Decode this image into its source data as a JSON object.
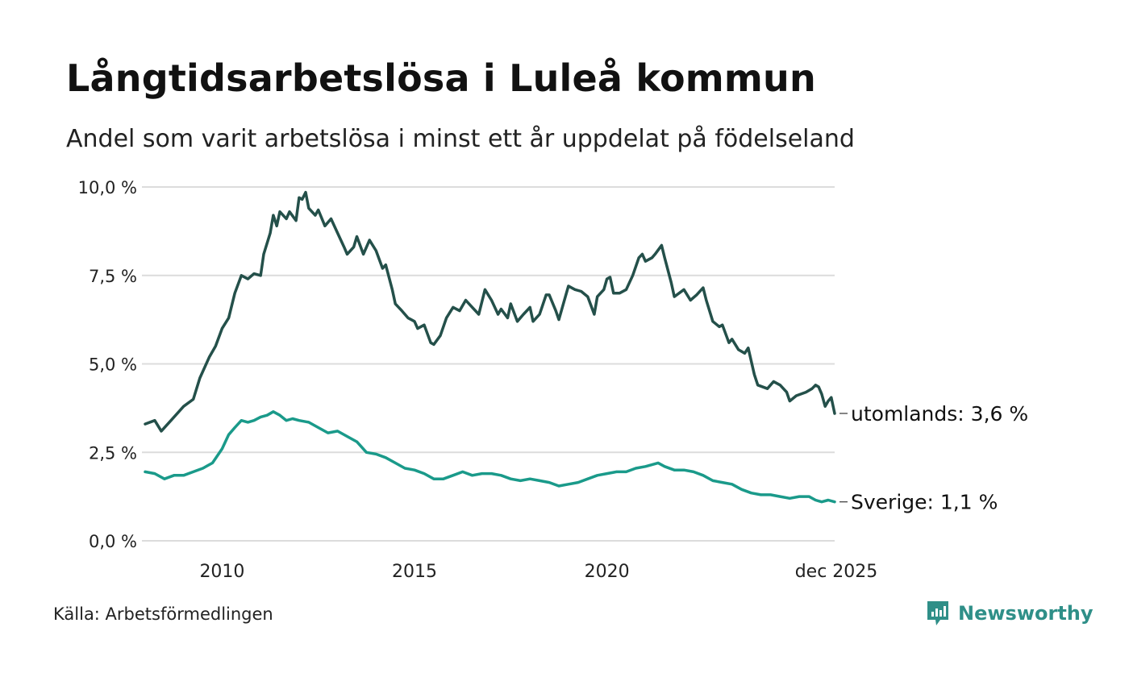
{
  "header": {
    "title": "Långtidsarbetslösa i Luleå kommun",
    "subtitle": "Andel som varit arbetslösa i minst ett år uppdelat på födelseland"
  },
  "footer": {
    "source": "Källa: Arbetsförmedlingen",
    "brand": "Newsworthy"
  },
  "colors": {
    "utomlands": "#24504a",
    "sverige": "#1a9a8a",
    "grid": "#dcdcdc",
    "brand": "#2f8f88"
  },
  "chart_data": {
    "type": "line",
    "title": "Långtidsarbetslösa i Luleå kommun",
    "subtitle": "Andel som varit arbetslösa i minst ett år uppdelat på födelseland",
    "xlabel": "",
    "ylabel": "",
    "ylim": [
      0,
      10
    ],
    "xlim": [
      2008.0,
      2025.917
    ],
    "grid": "horizontal",
    "yticks": [
      {
        "value": 0,
        "label": "0,0 %"
      },
      {
        "value": 2.5,
        "label": "2,5 %"
      },
      {
        "value": 5,
        "label": "5,0 %"
      },
      {
        "value": 7.5,
        "label": "7,5 %"
      },
      {
        "value": 10,
        "label": "10,0 %"
      }
    ],
    "xticks": [
      {
        "value": 2010,
        "label": "2010"
      },
      {
        "value": 2015,
        "label": "2015"
      },
      {
        "value": 2020,
        "label": "2020"
      },
      {
        "value": 2025.917,
        "label": "dec 2025"
      }
    ],
    "series": [
      {
        "name": "utomlands",
        "end_label": "utomlands: 3,6 %",
        "points": [
          [
            2008.0,
            3.3
          ],
          [
            2008.25,
            3.4
          ],
          [
            2008.42,
            3.1
          ],
          [
            2008.67,
            3.4
          ],
          [
            2009.0,
            3.8
          ],
          [
            2009.25,
            4.0
          ],
          [
            2009.42,
            4.6
          ],
          [
            2009.67,
            5.2
          ],
          [
            2009.83,
            5.5
          ],
          [
            2010.0,
            6.0
          ],
          [
            2010.17,
            6.3
          ],
          [
            2010.33,
            7.0
          ],
          [
            2010.5,
            7.5
          ],
          [
            2010.67,
            7.4
          ],
          [
            2010.83,
            7.55
          ],
          [
            2011.0,
            7.5
          ],
          [
            2011.08,
            8.1
          ],
          [
            2011.25,
            8.7
          ],
          [
            2011.33,
            9.2
          ],
          [
            2011.42,
            8.9
          ],
          [
            2011.5,
            9.3
          ],
          [
            2011.67,
            9.1
          ],
          [
            2011.75,
            9.3
          ],
          [
            2011.92,
            9.05
          ],
          [
            2012.0,
            9.7
          ],
          [
            2012.08,
            9.65
          ],
          [
            2012.17,
            9.85
          ],
          [
            2012.25,
            9.4
          ],
          [
            2012.42,
            9.2
          ],
          [
            2012.5,
            9.35
          ],
          [
            2012.67,
            8.9
          ],
          [
            2012.83,
            9.1
          ],
          [
            2013.0,
            8.7
          ],
          [
            2013.17,
            8.3
          ],
          [
            2013.25,
            8.1
          ],
          [
            2013.42,
            8.3
          ],
          [
            2013.5,
            8.6
          ],
          [
            2013.67,
            8.1
          ],
          [
            2013.83,
            8.5
          ],
          [
            2014.0,
            8.2
          ],
          [
            2014.17,
            7.7
          ],
          [
            2014.25,
            7.8
          ],
          [
            2014.42,
            7.1
          ],
          [
            2014.5,
            6.7
          ],
          [
            2014.67,
            6.5
          ],
          [
            2014.83,
            6.3
          ],
          [
            2015.0,
            6.2
          ],
          [
            2015.08,
            6.0
          ],
          [
            2015.25,
            6.1
          ],
          [
            2015.42,
            5.6
          ],
          [
            2015.5,
            5.55
          ],
          [
            2015.67,
            5.8
          ],
          [
            2015.83,
            6.3
          ],
          [
            2016.0,
            6.6
          ],
          [
            2016.17,
            6.5
          ],
          [
            2016.33,
            6.8
          ],
          [
            2016.5,
            6.6
          ],
          [
            2016.67,
            6.4
          ],
          [
            2016.83,
            7.1
          ],
          [
            2017.0,
            6.8
          ],
          [
            2017.17,
            6.4
          ],
          [
            2017.25,
            6.55
          ],
          [
            2017.42,
            6.3
          ],
          [
            2017.5,
            6.7
          ],
          [
            2017.67,
            6.2
          ],
          [
            2017.83,
            6.4
          ],
          [
            2018.0,
            6.6
          ],
          [
            2018.08,
            6.2
          ],
          [
            2018.25,
            6.4
          ],
          [
            2018.42,
            6.95
          ],
          [
            2018.5,
            6.95
          ],
          [
            2018.67,
            6.5
          ],
          [
            2018.75,
            6.25
          ],
          [
            2018.92,
            6.9
          ],
          [
            2019.0,
            7.2
          ],
          [
            2019.17,
            7.1
          ],
          [
            2019.33,
            7.05
          ],
          [
            2019.5,
            6.9
          ],
          [
            2019.67,
            6.4
          ],
          [
            2019.75,
            6.9
          ],
          [
            2019.92,
            7.1
          ],
          [
            2020.0,
            7.4
          ],
          [
            2020.08,
            7.45
          ],
          [
            2020.17,
            7.0
          ],
          [
            2020.33,
            7.0
          ],
          [
            2020.5,
            7.1
          ],
          [
            2020.67,
            7.5
          ],
          [
            2020.83,
            8.0
          ],
          [
            2020.92,
            8.1
          ],
          [
            2021.0,
            7.9
          ],
          [
            2021.17,
            8.0
          ],
          [
            2021.25,
            8.1
          ],
          [
            2021.42,
            8.35
          ],
          [
            2021.5,
            8.0
          ],
          [
            2021.67,
            7.3
          ],
          [
            2021.75,
            6.9
          ],
          [
            2022.0,
            7.1
          ],
          [
            2022.17,
            6.8
          ],
          [
            2022.33,
            6.95
          ],
          [
            2022.5,
            7.15
          ],
          [
            2022.58,
            6.8
          ],
          [
            2022.75,
            6.2
          ],
          [
            2022.92,
            6.05
          ],
          [
            2023.0,
            6.1
          ],
          [
            2023.17,
            5.6
          ],
          [
            2023.25,
            5.7
          ],
          [
            2023.42,
            5.4
          ],
          [
            2023.58,
            5.3
          ],
          [
            2023.67,
            5.45
          ],
          [
            2023.83,
            4.7
          ],
          [
            2023.92,
            4.4
          ],
          [
            2024.17,
            4.3
          ],
          [
            2024.33,
            4.5
          ],
          [
            2024.5,
            4.4
          ],
          [
            2024.67,
            4.2
          ],
          [
            2024.75,
            3.95
          ],
          [
            2024.92,
            4.1
          ],
          [
            2025.17,
            4.2
          ],
          [
            2025.33,
            4.3
          ],
          [
            2025.42,
            4.4
          ],
          [
            2025.5,
            4.35
          ],
          [
            2025.58,
            4.15
          ],
          [
            2025.67,
            3.8
          ],
          [
            2025.75,
            3.95
          ],
          [
            2025.83,
            4.05
          ],
          [
            2025.917,
            3.6
          ]
        ]
      },
      {
        "name": "Sverige",
        "end_label": "Sverige: 1,1 %",
        "points": [
          [
            2008.0,
            1.95
          ],
          [
            2008.25,
            1.9
          ],
          [
            2008.5,
            1.75
          ],
          [
            2008.75,
            1.85
          ],
          [
            2009.0,
            1.85
          ],
          [
            2009.25,
            1.95
          ],
          [
            2009.5,
            2.05
          ],
          [
            2009.75,
            2.2
          ],
          [
            2010.0,
            2.6
          ],
          [
            2010.17,
            3.0
          ],
          [
            2010.33,
            3.2
          ],
          [
            2010.5,
            3.4
          ],
          [
            2010.67,
            3.35
          ],
          [
            2010.83,
            3.4
          ],
          [
            2011.0,
            3.5
          ],
          [
            2011.17,
            3.55
          ],
          [
            2011.33,
            3.65
          ],
          [
            2011.5,
            3.55
          ],
          [
            2011.67,
            3.4
          ],
          [
            2011.83,
            3.45
          ],
          [
            2012.0,
            3.4
          ],
          [
            2012.25,
            3.35
          ],
          [
            2012.5,
            3.2
          ],
          [
            2012.75,
            3.05
          ],
          [
            2013.0,
            3.1
          ],
          [
            2013.25,
            2.95
          ],
          [
            2013.5,
            2.8
          ],
          [
            2013.75,
            2.5
          ],
          [
            2014.0,
            2.45
          ],
          [
            2014.25,
            2.35
          ],
          [
            2014.5,
            2.2
          ],
          [
            2014.75,
            2.05
          ],
          [
            2015.0,
            2.0
          ],
          [
            2015.25,
            1.9
          ],
          [
            2015.5,
            1.75
          ],
          [
            2015.75,
            1.75
          ],
          [
            2016.0,
            1.85
          ],
          [
            2016.25,
            1.95
          ],
          [
            2016.5,
            1.85
          ],
          [
            2016.75,
            1.9
          ],
          [
            2017.0,
            1.9
          ],
          [
            2017.25,
            1.85
          ],
          [
            2017.5,
            1.75
          ],
          [
            2017.75,
            1.7
          ],
          [
            2018.0,
            1.75
          ],
          [
            2018.25,
            1.7
          ],
          [
            2018.5,
            1.65
          ],
          [
            2018.75,
            1.55
          ],
          [
            2019.0,
            1.6
          ],
          [
            2019.25,
            1.65
          ],
          [
            2019.5,
            1.75
          ],
          [
            2019.75,
            1.85
          ],
          [
            2020.0,
            1.9
          ],
          [
            2020.25,
            1.95
          ],
          [
            2020.5,
            1.95
          ],
          [
            2020.75,
            2.05
          ],
          [
            2021.0,
            2.1
          ],
          [
            2021.17,
            2.15
          ],
          [
            2021.33,
            2.2
          ],
          [
            2021.5,
            2.1
          ],
          [
            2021.75,
            2.0
          ],
          [
            2022.0,
            2.0
          ],
          [
            2022.25,
            1.95
          ],
          [
            2022.5,
            1.85
          ],
          [
            2022.75,
            1.7
          ],
          [
            2023.0,
            1.65
          ],
          [
            2023.25,
            1.6
          ],
          [
            2023.5,
            1.45
          ],
          [
            2023.75,
            1.35
          ],
          [
            2024.0,
            1.3
          ],
          [
            2024.25,
            1.3
          ],
          [
            2024.5,
            1.25
          ],
          [
            2024.75,
            1.2
          ],
          [
            2025.0,
            1.25
          ],
          [
            2025.25,
            1.25
          ],
          [
            2025.42,
            1.15
          ],
          [
            2025.58,
            1.1
          ],
          [
            2025.75,
            1.15
          ],
          [
            2025.917,
            1.1
          ]
        ]
      }
    ]
  }
}
